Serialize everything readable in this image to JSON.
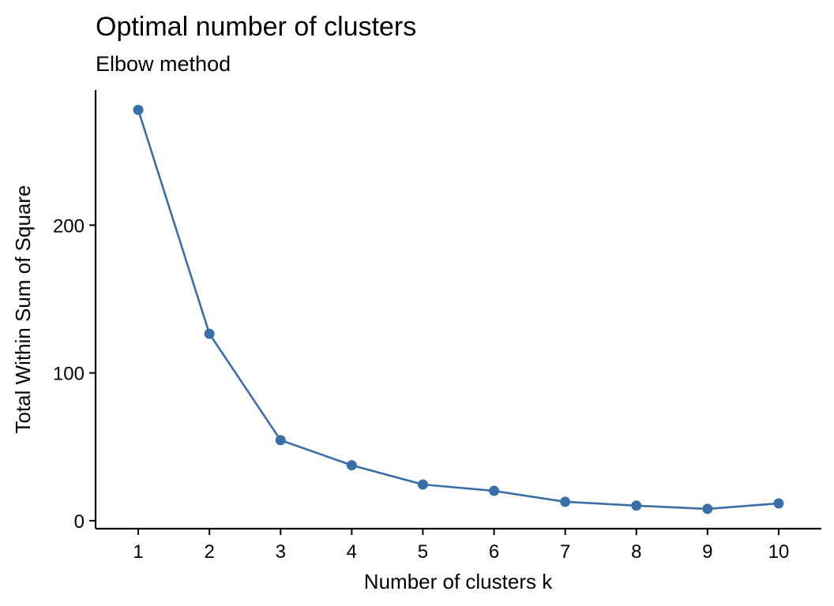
{
  "chart_data": {
    "type": "line",
    "title": "Optimal number of clusters",
    "subtitle": "Elbow method",
    "xlabel": "Number of clusters k",
    "ylabel": "Total Within Sum of Square",
    "x": [
      1,
      2,
      3,
      4,
      5,
      6,
      7,
      8,
      9,
      10
    ],
    "series": [
      {
        "values": [
          278,
          126.5,
          54.5,
          37.5,
          24.5,
          20.2,
          12.8,
          10.2,
          8.0,
          11.7
        ],
        "color": "#3A6EA8"
      }
    ],
    "x_ticks": [
      "1",
      "2",
      "3",
      "4",
      "5",
      "6",
      "7",
      "8",
      "9",
      "10"
    ],
    "y_ticks": [
      0,
      100,
      200
    ],
    "xlim": [
      0.4,
      10.6
    ],
    "ylim": [
      -5.4,
      291.5
    ],
    "grid": false,
    "markers": true
  }
}
